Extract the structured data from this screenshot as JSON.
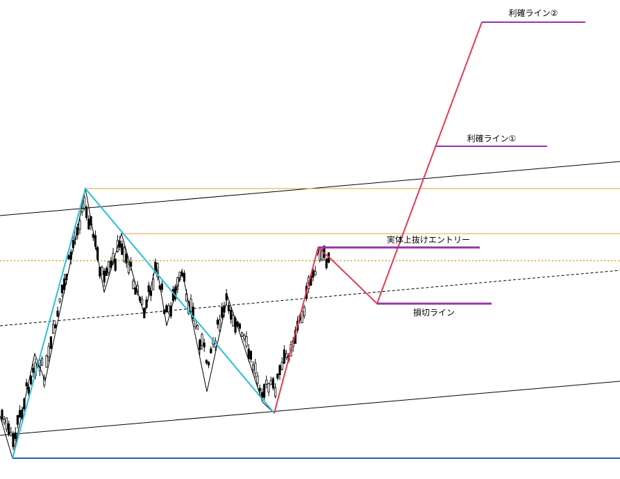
{
  "annotations": [
    {
      "label": "利確ライン②"
    },
    {
      "label": "利確ライン①"
    },
    {
      "label": "実体上抜けエントリー"
    },
    {
      "label": "損切ライン"
    }
  ]
}
